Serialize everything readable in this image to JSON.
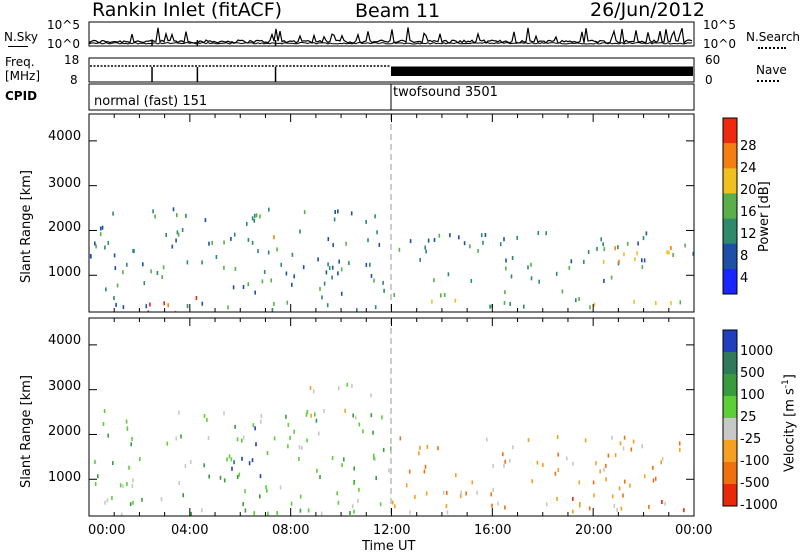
{
  "header": {
    "station": "Rankin Inlet (fitACF)",
    "beam": "Beam 11",
    "date": "26/Jun/2012"
  },
  "summary_panels": {
    "n_sky_label": "N.Sky",
    "n_search_label": "N.Search",
    "freq_label_line1": "Freq.",
    "freq_label_line2": "[MHz]",
    "nave_label": "Nave",
    "cpid_label": "CPID",
    "nsky_ticks": [
      "10^5",
      "10^0"
    ],
    "nsearch_ticks": [
      "10^5",
      "10^0"
    ],
    "freq_ticks": [
      "18",
      "8"
    ],
    "nave_ticks": [
      "60",
      "0"
    ],
    "cpid_segments": [
      {
        "label": "normal (fast) 151",
        "start_h": 0,
        "end_h": 12
      },
      {
        "label": "twofsound 3501",
        "start_h": 12,
        "end_h": 24
      }
    ]
  },
  "chart_data": [
    {
      "type": "heatmap",
      "title": "",
      "xlabel": "Time UT",
      "ylabel": "Slant Range [km]",
      "x_ticks": [
        "00:00",
        "04:00",
        "08:00",
        "12:00",
        "16:00",
        "20:00",
        "00:00"
      ],
      "xlim": [
        0,
        24
      ],
      "y_ticks": [
        1000,
        2000,
        3000,
        4000
      ],
      "ylim": [
        180,
        4600
      ],
      "colorbar": {
        "label": "Power [dB]",
        "ticks": [
          4,
          8,
          12,
          16,
          20,
          24,
          28
        ],
        "colors": [
          "#1a26ff",
          "#1d4fa8",
          "#2e8a6a",
          "#59b04a",
          "#f0c020",
          "#f57e12",
          "#ef2810"
        ]
      },
      "regions": [
        {
          "t0": 0.0,
          "t1": 12.0,
          "r0": 250,
          "r1": 2600,
          "level": 2
        },
        {
          "t0": 1.8,
          "t1": 4.6,
          "r0": 200,
          "r1": 700,
          "level": 6
        },
        {
          "t0": 7.1,
          "t1": 8.2,
          "r0": 1750,
          "r1": 2050,
          "level": 5
        },
        {
          "t0": 12.0,
          "t1": 24.0,
          "r0": 900,
          "r1": 2000,
          "level": 2
        },
        {
          "t0": 19.0,
          "t1": 23.9,
          "r0": 1200,
          "r1": 1700,
          "level": 4
        },
        {
          "t0": 12.0,
          "t1": 24.0,
          "r0": 300,
          "r1": 700,
          "level": 3
        }
      ]
    },
    {
      "type": "heatmap",
      "title": "",
      "xlabel": "Time UT",
      "ylabel": "Slant Range [km]",
      "x_ticks": [
        "00:00",
        "04:00",
        "08:00",
        "12:00",
        "16:00",
        "20:00",
        "00:00"
      ],
      "xlim": [
        0,
        24
      ],
      "y_ticks": [
        1000,
        2000,
        3000,
        4000
      ],
      "ylim": [
        180,
        4600
      ],
      "colorbar": {
        "label": "Velocity [m s^-1]",
        "label_parts": [
          "Velocity [m s",
          "-1",
          "]"
        ],
        "ticks": [
          1000,
          500,
          100,
          25,
          -25,
          -100,
          -500,
          -1000
        ],
        "colors": [
          "#1f3fbf",
          "#2e7a5a",
          "#3a9a3e",
          "#5ccf38",
          "#c8c8c8",
          "#f5a020",
          "#f07010",
          "#e82808"
        ]
      },
      "regions": [
        {
          "t0": 0.0,
          "t1": 12.0,
          "r0": 250,
          "r1": 2600,
          "level": 3
        },
        {
          "t0": 5.5,
          "t1": 6.8,
          "r0": 800,
          "r1": 2200,
          "level": 0
        },
        {
          "t0": 8.5,
          "t1": 11.5,
          "r0": 2400,
          "r1": 3200,
          "level": 4
        },
        {
          "t0": 12.0,
          "t1": 24.0,
          "r0": 300,
          "r1": 2000,
          "level": 5
        },
        {
          "t0": 19.0,
          "t1": 23.9,
          "r0": 350,
          "r1": 700,
          "level": 6
        }
      ]
    }
  ]
}
